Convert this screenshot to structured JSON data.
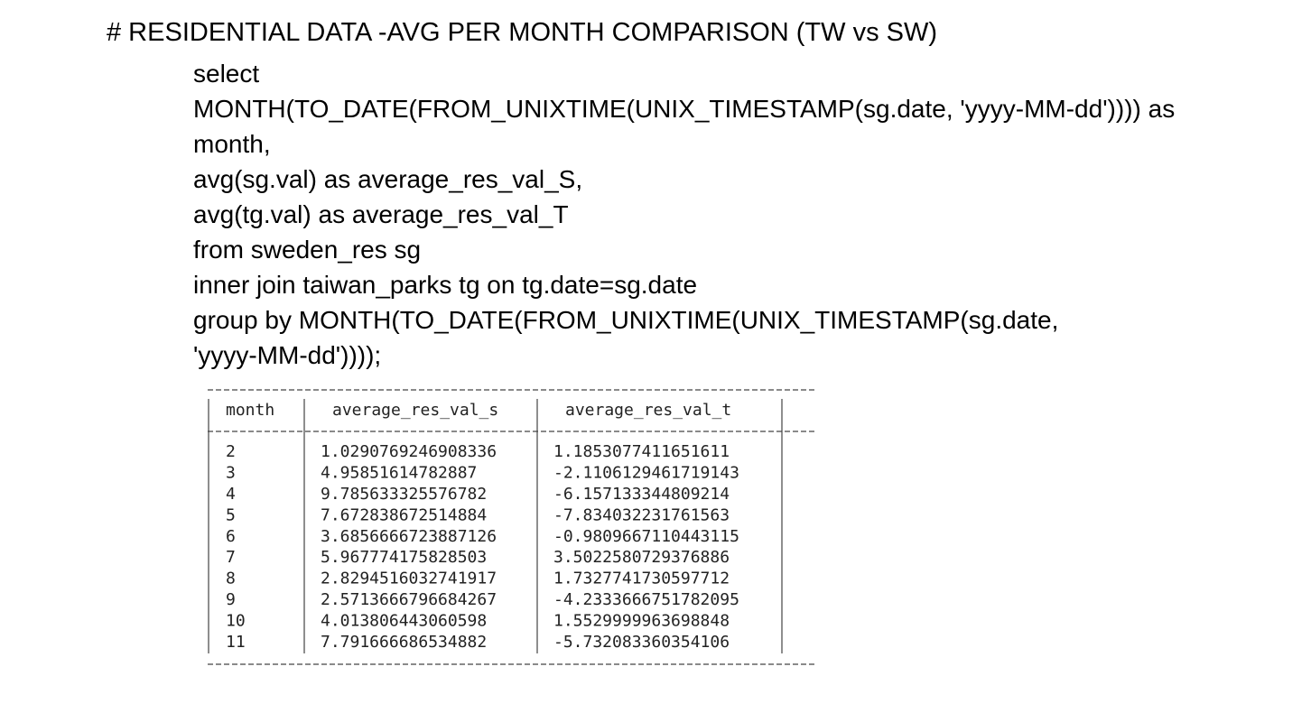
{
  "heading": "# RESIDENTIAL DATA -AVG PER MONTH COMPARISON (TW vs SW)",
  "query": [
    "select",
    "MONTH(TO_DATE(FROM_UNIXTIME(UNIX_TIMESTAMP(sg.date, 'yyyy-MM-dd')))) as",
    "month,",
    "avg(sg.val) as average_res_val_S,",
    "avg(tg.val) as average_res_val_T",
    "from sweden_res sg",
    "inner join taiwan_parks tg on tg.date=sg.date",
    "group by MONTH(TO_DATE(FROM_UNIXTIME(UNIX_TIMESTAMP(sg.date,",
    "'yyyy-MM-dd'))));"
  ],
  "table": {
    "header": [
      "month",
      "average_res_val_s",
      "average_res_val_t"
    ],
    "rows": [
      [
        "2",
        "1.0290769246908336",
        "1.1853077411651611"
      ],
      [
        "3",
        "4.95851614782887",
        "-2.1106129461719143"
      ],
      [
        "4",
        "9.785633325576782",
        "-6.157133344809214"
      ],
      [
        "5",
        "7.672838672514884",
        "-7.834032231761563"
      ],
      [
        "6",
        "3.6856666723887126",
        "-0.9809667110443115"
      ],
      [
        "7",
        "5.967774175828503",
        "3.5022580729376886"
      ],
      [
        "8",
        "2.8294516032741917",
        "1.7327741730597712"
      ],
      [
        "9",
        "2.5713666796684267",
        "-4.2333666751782095"
      ],
      [
        "10",
        "4.013806443060598",
        "1.5529999963698848"
      ],
      [
        "11",
        "7.791666686534882",
        "-5.732083360354106"
      ]
    ]
  }
}
